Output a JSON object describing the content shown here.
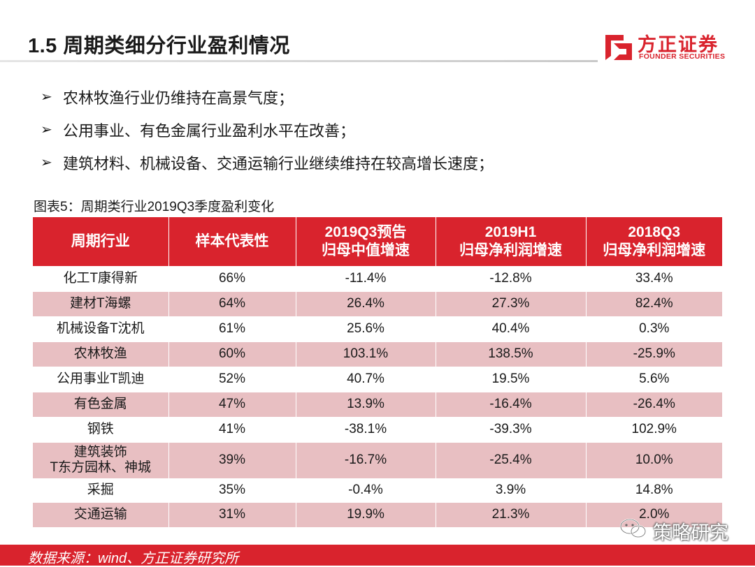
{
  "header": {
    "title": "1.5 周期类细分行业盈利情况",
    "logo_cn": "方正证券",
    "logo_en": "FOUNDER SECURITIES"
  },
  "bullets": [
    "农林牧渔行业仍维持在高景气度；",
    "公用事业、有色金属行业盈利水平在改善；",
    "建筑材料、机械设备、交通运输行业继续维持在较高增长速度；"
  ],
  "bullet_marker": "➢",
  "figure_caption": "图表5：周期类行业2019Q3季度盈利变化",
  "table": {
    "headers": [
      {
        "line1": "周期行业",
        "line2": ""
      },
      {
        "line1": "样本代表性",
        "line2": ""
      },
      {
        "line1": "2019Q3预告",
        "line2": "归母中值增速"
      },
      {
        "line1": "2019H1",
        "line2": "归母净利润增速"
      },
      {
        "line1": "2018Q3",
        "line2": "归母净利润增速"
      }
    ],
    "rows": [
      {
        "industry": "化工T康得新",
        "industry2": "",
        "sample": "66%",
        "q3_2019": "-11.4%",
        "h1_2019": "-12.8%",
        "q3_2018": "33.4%"
      },
      {
        "industry": "建材T海螺",
        "industry2": "",
        "sample": "64%",
        "q3_2019": "26.4%",
        "h1_2019": "27.3%",
        "q3_2018": "82.4%"
      },
      {
        "industry": "机械设备T沈机",
        "industry2": "",
        "sample": "61%",
        "q3_2019": "25.6%",
        "h1_2019": "40.4%",
        "q3_2018": "0.3%"
      },
      {
        "industry": "农林牧渔",
        "industry2": "",
        "sample": "60%",
        "q3_2019": "103.1%",
        "h1_2019": "138.5%",
        "q3_2018": "-25.9%"
      },
      {
        "industry": "公用事业T凯迪",
        "industry2": "",
        "sample": "52%",
        "q3_2019": "40.7%",
        "h1_2019": "19.5%",
        "q3_2018": "5.6%"
      },
      {
        "industry": "有色金属",
        "industry2": "",
        "sample": "47%",
        "q3_2019": "13.9%",
        "h1_2019": "-16.4%",
        "q3_2018": "-26.4%"
      },
      {
        "industry": "钢铁",
        "industry2": "",
        "sample": "41%",
        "q3_2019": "-38.1%",
        "h1_2019": "-39.3%",
        "q3_2018": "102.9%"
      },
      {
        "industry": "建筑装饰",
        "industry2": "T东方园林、神城",
        "sample": "39%",
        "q3_2019": "-16.7%",
        "h1_2019": "-25.4%",
        "q3_2018": "10.0%"
      },
      {
        "industry": "采掘",
        "industry2": "",
        "sample": "35%",
        "q3_2019": "-0.4%",
        "h1_2019": "3.9%",
        "q3_2018": "14.8%"
      },
      {
        "industry": "交通运输",
        "industry2": "",
        "sample": "31%",
        "q3_2019": "19.9%",
        "h1_2019": "21.3%",
        "q3_2018": "2.0%"
      }
    ]
  },
  "footer": {
    "source": "数据来源：wind、方正证券研究所"
  },
  "watermark": {
    "label": "策略研究"
  },
  "colors": {
    "brand_red": "#d9232d",
    "row_pink": "#e8bfc2"
  }
}
